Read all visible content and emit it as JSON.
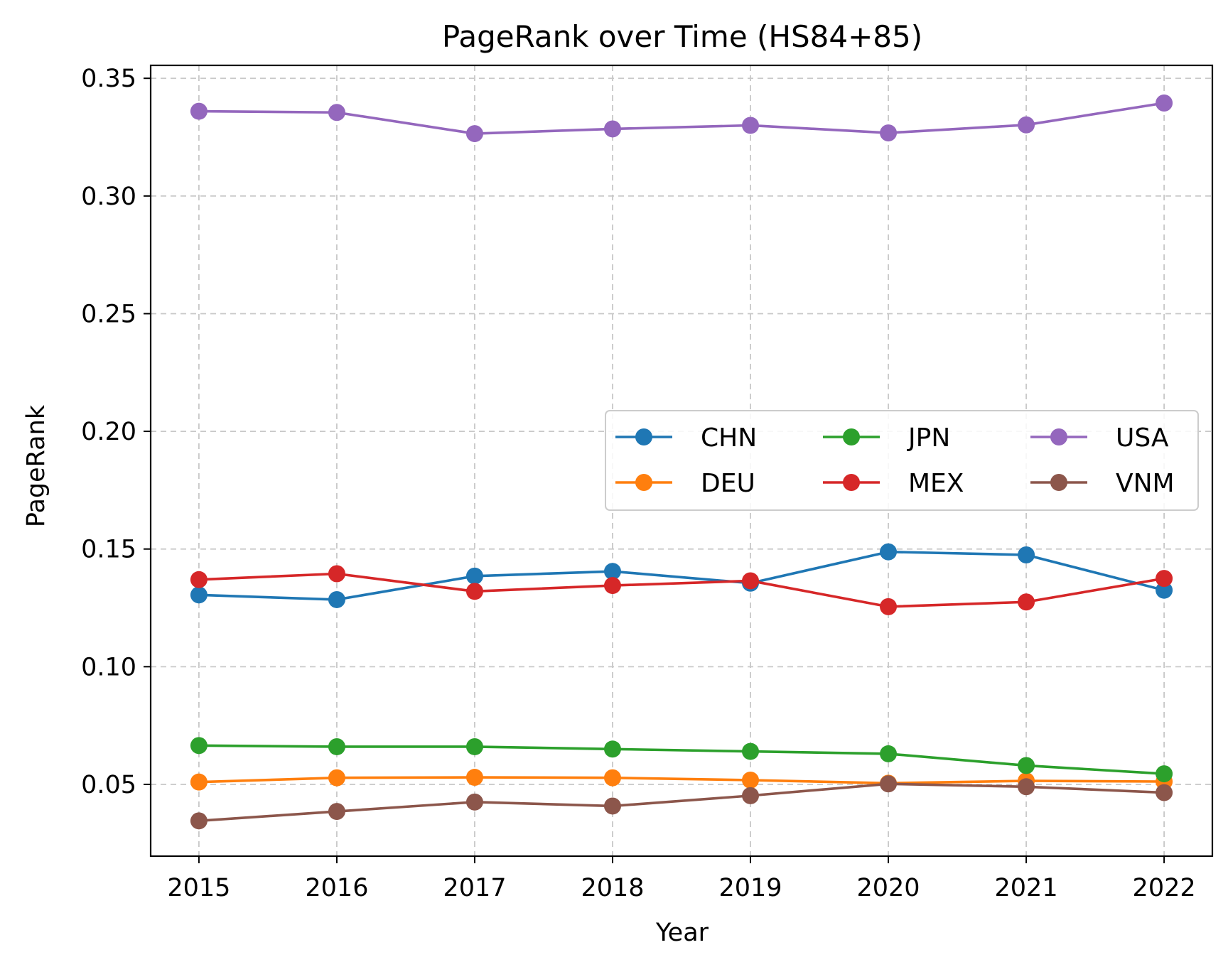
{
  "chart_data": {
    "type": "line",
    "title": "PageRank over Time (HS84+85)",
    "xlabel": "Year",
    "ylabel": "PageRank",
    "x": [
      2015,
      2016,
      2017,
      2018,
      2019,
      2020,
      2021,
      2022
    ],
    "x_tick_labels": [
      "2015",
      "2016",
      "2017",
      "2018",
      "2019",
      "2020",
      "2021",
      "2022"
    ],
    "y_ticks": [
      0.05,
      0.1,
      0.15,
      0.2,
      0.25,
      0.3,
      0.35
    ],
    "y_tick_labels": [
      "0.05",
      "0.10",
      "0.15",
      "0.20",
      "0.25",
      "0.30",
      "0.35"
    ],
    "xlim": [
      2014.65,
      2022.35
    ],
    "ylim": [
      0.0195,
      0.3555
    ],
    "grid": true,
    "legend": {
      "placement": "center-right",
      "columns": 3
    },
    "series": [
      {
        "name": "CHN",
        "color": "#1f77b4",
        "values": [
          0.1305,
          0.1285,
          0.1385,
          0.1405,
          0.1355,
          0.1488,
          0.1475,
          0.1325
        ]
      },
      {
        "name": "DEU",
        "color": "#ff7f0e",
        "values": [
          0.051,
          0.0528,
          0.053,
          0.0528,
          0.0518,
          0.0505,
          0.0515,
          0.0512
        ]
      },
      {
        "name": "JPN",
        "color": "#2ca02c",
        "values": [
          0.0665,
          0.066,
          0.066,
          0.065,
          0.064,
          0.063,
          0.058,
          0.0545
        ]
      },
      {
        "name": "MEX",
        "color": "#d62728",
        "values": [
          0.137,
          0.1395,
          0.132,
          0.1345,
          0.1365,
          0.1255,
          0.1275,
          0.1375
        ]
      },
      {
        "name": "USA",
        "color": "#9467bd",
        "values": [
          0.336,
          0.3355,
          0.3265,
          0.3285,
          0.33,
          0.3268,
          0.3302,
          0.3395
        ]
      },
      {
        "name": "VNM",
        "color": "#8c564b",
        "values": [
          0.0345,
          0.0385,
          0.0425,
          0.0408,
          0.0452,
          0.0502,
          0.049,
          0.0465
        ]
      }
    ]
  }
}
